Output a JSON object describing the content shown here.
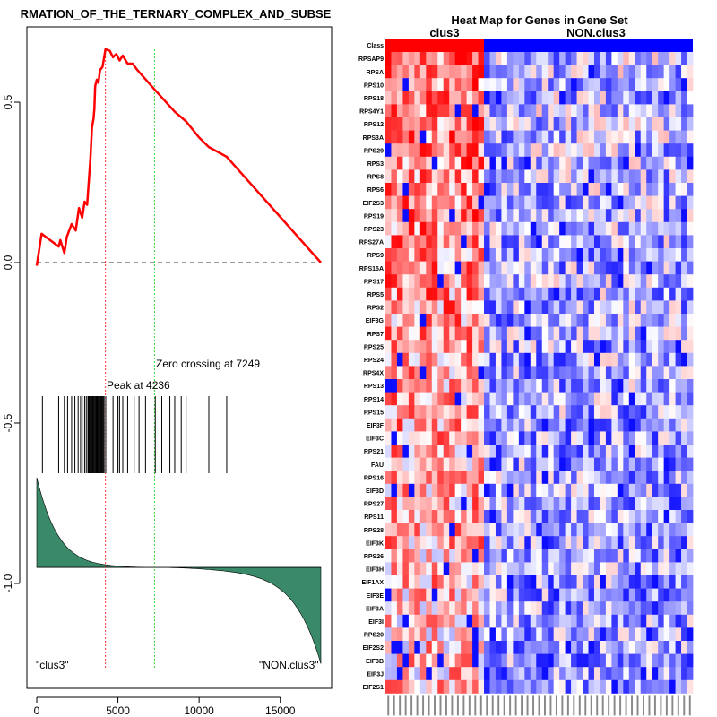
{
  "chart_data": [
    {
      "type": "line",
      "title": "RMATION_OF_THE_TERNARY_COMPLEX_AND_SUBSE",
      "xlim": [
        0,
        17500
      ],
      "ylim": [
        -1.3,
        0.68
      ],
      "x_ticks": [
        0,
        5000,
        10000,
        15000
      ],
      "x_tick_labels": [
        "0",
        "5000",
        "10000",
        "15000"
      ],
      "y_ticks": [
        0.5,
        0.0,
        -0.5,
        -1.0
      ],
      "y_tick_labels": [
        "0.5",
        "0.0",
        "-0.5",
        "-1.0"
      ],
      "line_color": "#ff0000",
      "es_curve": [
        [
          0,
          -0.01
        ],
        [
          300,
          0.09
        ],
        [
          1350,
          0.05
        ],
        [
          1450,
          0.07
        ],
        [
          1700,
          0.03
        ],
        [
          1850,
          0.08
        ],
        [
          2150,
          0.12
        ],
        [
          2400,
          0.1
        ],
        [
          2600,
          0.17
        ],
        [
          2800,
          0.14
        ],
        [
          2950,
          0.19
        ],
        [
          3100,
          0.18
        ],
        [
          3200,
          0.25
        ],
        [
          3300,
          0.32
        ],
        [
          3400,
          0.42
        ],
        [
          3500,
          0.45
        ],
        [
          3550,
          0.48
        ],
        [
          3600,
          0.55
        ],
        [
          3700,
          0.57
        ],
        [
          3800,
          0.56
        ],
        [
          3900,
          0.6
        ],
        [
          4050,
          0.61
        ],
        [
          4236,
          0.665
        ],
        [
          4500,
          0.66
        ],
        [
          4700,
          0.64
        ],
        [
          4900,
          0.65
        ],
        [
          5100,
          0.63
        ],
        [
          5300,
          0.645
        ],
        [
          5600,
          0.62
        ],
        [
          5900,
          0.62
        ],
        [
          6200,
          0.6
        ],
        [
          7249,
          0.54
        ],
        [
          8500,
          0.47
        ],
        [
          9200,
          0.44
        ],
        [
          10000,
          0.39
        ],
        [
          10600,
          0.36
        ],
        [
          11700,
          0.33
        ],
        [
          17500,
          0.0
        ]
      ],
      "peak_label": "Peak at 4236",
      "peak_x": 4236,
      "zero_cross_label": "Zero crossing at 7249",
      "zero_cross_x": 7249,
      "hits": [
        350,
        1350,
        1700,
        1900,
        2150,
        2350,
        2550,
        2700,
        2800,
        2950,
        3050,
        3150,
        3200,
        3250,
        3300,
        3350,
        3400,
        3450,
        3500,
        3550,
        3600,
        3650,
        3700,
        3750,
        3800,
        3850,
        3900,
        3950,
        4000,
        4050,
        4100,
        4150,
        4250,
        4700,
        5000,
        5100,
        5300,
        5600,
        6000,
        6300,
        6700,
        7300,
        7700,
        8200,
        8500,
        8900,
        9200,
        10600,
        11700
      ],
      "ranked_metric": {
        "fill_color": "#3a8a6a",
        "baseline": -0.95,
        "start": -0.67,
        "end": -1.25,
        "crossing_x": 7249
      },
      "left_class_label": "\"clus3\"",
      "right_class_label": "\"NON.clus3\""
    },
    {
      "type": "heatmap",
      "title": "Heat Map for Genes in Gene Set",
      "class_row_label": "Class",
      "groups": [
        {
          "name": "clus3",
          "color": "#ff0000",
          "n_samples": 17
        },
        {
          "name": "NON.clus3",
          "color": "#0000ff",
          "n_samples": 36
        }
      ],
      "genes": [
        "RPSAP9",
        "RPSA",
        "RPS10",
        "RPS18",
        "RPS4Y1",
        "RPS12",
        "RPS3A",
        "RPS29",
        "RPS3",
        "RPS8",
        "RPS6",
        "EIF2S3",
        "RPS19",
        "RPS23",
        "RPS27A",
        "RPS9",
        "RPS15A",
        "RPS17",
        "RPS5",
        "RPS2",
        "EIF3G",
        "RPS7",
        "RPS25",
        "RPS24",
        "RPS4X",
        "RPS13",
        "RPS14",
        "RPS15",
        "EIF3F",
        "EIF3C",
        "RPS21",
        "FAU",
        "RPS16",
        "EIF3D",
        "RPS27",
        "RPS11",
        "RPS28",
        "EIF3K",
        "RPS26",
        "EIF3H",
        "EIF1AX",
        "EIF3E",
        "EIF3A",
        "EIF3I",
        "RPS20",
        "EIF2S2",
        "EIF3B",
        "EIF3J",
        "EIF2S1"
      ],
      "color_scale": [
        "#0000ff",
        "#ffffff",
        "#ff0000"
      ]
    }
  ]
}
